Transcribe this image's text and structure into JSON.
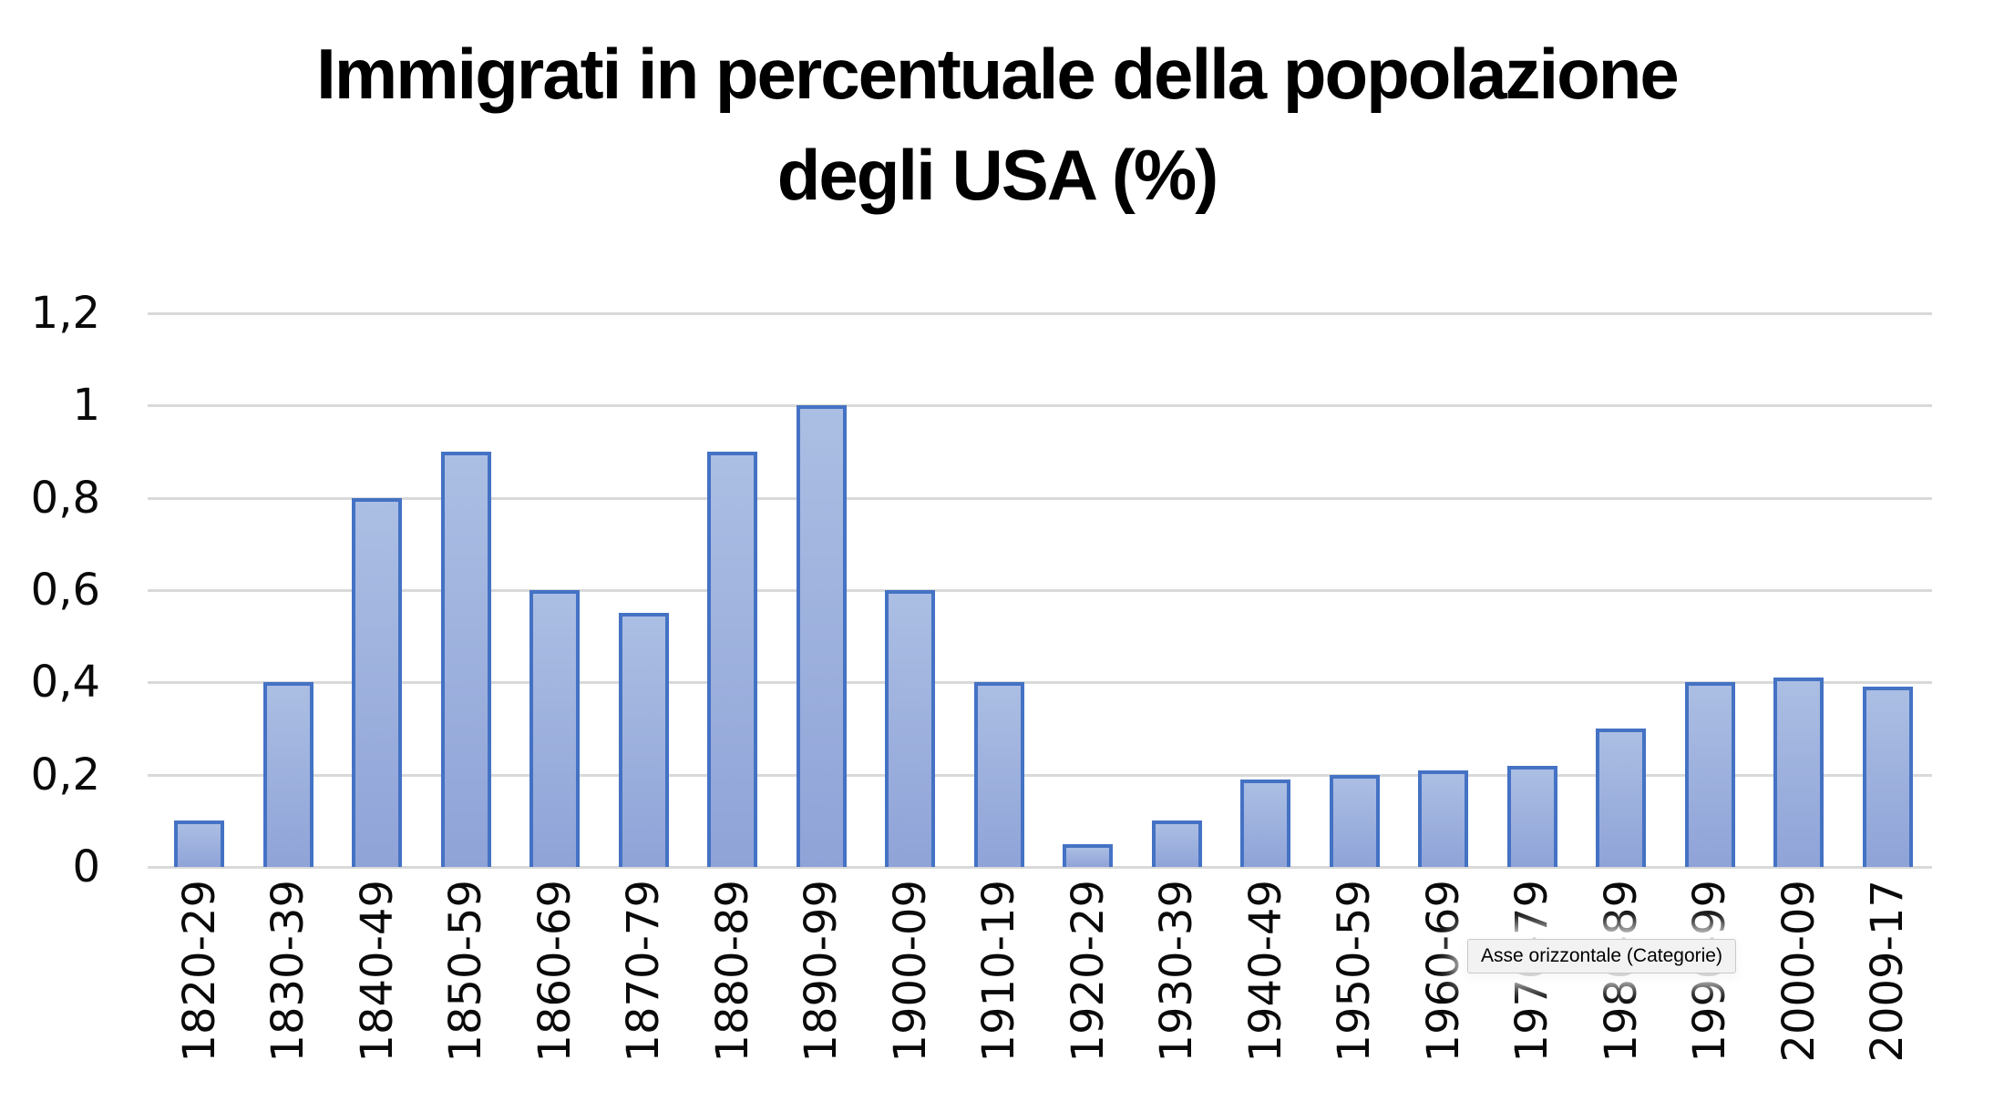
{
  "title": {
    "line1": "Immigrati in percentuale della popolazione",
    "line2": "degli USA (%)"
  },
  "tooltip": {
    "text": "Asse orizzontale (Categorie)"
  },
  "chart_data": {
    "type": "bar",
    "title": "Immigrati in percentuale della popolazione degli USA (%)",
    "xlabel": "",
    "ylabel": "",
    "categories": [
      "1820-29",
      "1830-39",
      "1840-49",
      "1850-59",
      "1860-69",
      "1870-79",
      "1880-89",
      "1890-99",
      "1900-09",
      "1910-19",
      "1920-29",
      "1930-39",
      "1940-49",
      "1950-59",
      "1960-69",
      "1970-79",
      "1980-89",
      "1990-99",
      "2000-09",
      "2009-17"
    ],
    "values": [
      0.1,
      0.4,
      0.8,
      0.9,
      0.6,
      0.55,
      0.9,
      1.0,
      0.6,
      0.4,
      0.05,
      0.1,
      0.19,
      0.2,
      0.21,
      0.22,
      0.3,
      0.4,
      0.41,
      0.39
    ],
    "ylim": [
      0,
      1.2
    ],
    "yticks": [
      {
        "v": 0,
        "label": "0"
      },
      {
        "v": 0.2,
        "label": "0,2"
      },
      {
        "v": 0.4,
        "label": "0,4"
      },
      {
        "v": 0.6,
        "label": "0,6"
      },
      {
        "v": 0.8,
        "label": "0,8"
      },
      {
        "v": 1,
        "label": "1"
      },
      {
        "v": 1.2,
        "label": "1,2"
      }
    ],
    "decimal_separator": ",",
    "grid": "horizontal",
    "legend_position": "none",
    "x_tick_rotation_deg": 90,
    "colors": {
      "bar_border": "#4472C4",
      "bar_fill_top": "#ABBEE3",
      "bar_fill_bottom": "#8FA3D8",
      "gridline": "#D9D9D9",
      "axis_text": "#0A0A0A",
      "title_text": "#000000",
      "tooltip_bg": "#F2F2F2",
      "tooltip_border": "#C9C9C9"
    }
  }
}
